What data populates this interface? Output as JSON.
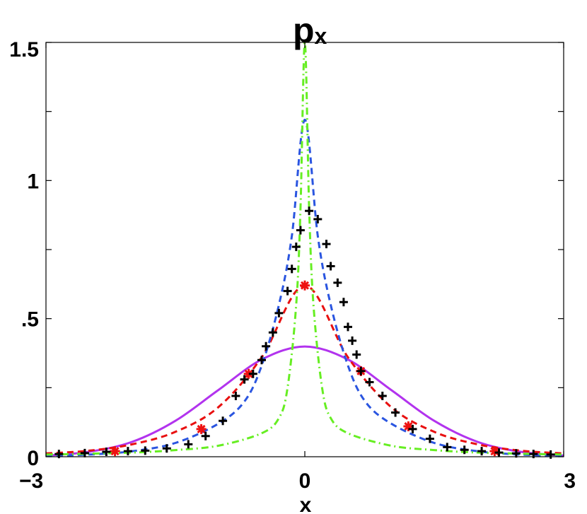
{
  "chart_data": {
    "type": "line",
    "title": "p",
    "title_subscript": "x",
    "xlabel": "x",
    "ylabel": "",
    "xlim": [
      -3,
      3
    ],
    "ylim": [
      0,
      1.5
    ],
    "x_tick_values": [
      -3,
      0,
      3
    ],
    "x_tick_labels": [
      "−3",
      "0",
      "3"
    ],
    "y_tick_values": [
      0,
      0.5,
      1,
      1.5
    ],
    "y_tick_labels": [
      "0",
      ".5",
      "1",
      "1.5"
    ],
    "grid": false,
    "legend": "none",
    "series": [
      {
        "style": "solid",
        "color": "#b233ee",
        "x": [
          -3,
          -2.5,
          -2,
          -1.5,
          -1,
          -0.5,
          0,
          0.5,
          1,
          1.5,
          2,
          2.5,
          3
        ],
        "y": [
          0.004,
          0.018,
          0.054,
          0.13,
          0.242,
          0.352,
          0.399,
          0.352,
          0.242,
          0.13,
          0.054,
          0.018,
          0.004
        ]
      },
      {
        "style": "dashed",
        "color": "#e81010",
        "x": [
          -3,
          -2.5,
          -2,
          -1.5,
          -1,
          -0.5,
          0,
          0.5,
          1,
          1.5,
          2,
          2.5,
          3
        ],
        "y": [
          0.012,
          0.022,
          0.045,
          0.09,
          0.18,
          0.36,
          0.62,
          0.36,
          0.18,
          0.09,
          0.045,
          0.022,
          0.012
        ]
      },
      {
        "style": "dashed",
        "color": "#2a55e0",
        "x": [
          -3,
          -2.5,
          -2,
          -1.5,
          -1,
          -0.7,
          -0.5,
          -0.3,
          -0.15,
          0,
          0.15,
          0.3,
          0.5,
          0.7,
          1,
          1.5,
          2,
          2.5,
          3
        ],
        "y": [
          0.003,
          0.008,
          0.02,
          0.05,
          0.12,
          0.2,
          0.33,
          0.55,
          0.8,
          1.22,
          0.8,
          0.55,
          0.33,
          0.2,
          0.12,
          0.05,
          0.02,
          0.008,
          0.003
        ]
      },
      {
        "style": "dashdot",
        "color": "#66ee22",
        "x": [
          -3,
          -2.5,
          -2,
          -1.5,
          -1,
          -0.5,
          -0.3,
          -0.2,
          -0.1,
          -0.05,
          0,
          0.05,
          0.1,
          0.2,
          0.3,
          0.5,
          1,
          1.5,
          2,
          2.5,
          3
        ],
        "y": [
          0.008,
          0.011,
          0.015,
          0.024,
          0.04,
          0.085,
          0.14,
          0.25,
          0.55,
          0.9,
          1.5,
          0.9,
          0.55,
          0.25,
          0.14,
          0.085,
          0.04,
          0.024,
          0.015,
          0.011,
          0.008
        ]
      },
      {
        "style": "star-markers",
        "color": "#ee1111",
        "x": [
          -2.2,
          -1.2,
          -0.65,
          0,
          0.65,
          1.2,
          2.2
        ],
        "y": [
          0.02,
          0.1,
          0.3,
          0.62,
          0.31,
          0.11,
          0.02
        ]
      },
      {
        "style": "plus-markers",
        "color": "#000000",
        "x": [
          -2.85,
          -2.55,
          -2.3,
          -2.05,
          -1.85,
          -1.6,
          -1.35,
          -1.15,
          -0.95,
          -0.8,
          -0.7,
          -0.6,
          -0.5,
          -0.45,
          -0.37,
          -0.3,
          -0.2,
          -0.15,
          -0.1,
          -0.05,
          0.05,
          0.15,
          0.25,
          0.3,
          0.38,
          0.45,
          0.5,
          0.55,
          0.6,
          0.65,
          0.75,
          0.9,
          1.05,
          1.25,
          1.45,
          1.65,
          1.85,
          2.05,
          2.25,
          2.45,
          2.65,
          2.85
        ],
        "y": [
          0.01,
          0.013,
          0.018,
          0.02,
          0.022,
          0.03,
          0.045,
          0.075,
          0.13,
          0.22,
          0.28,
          0.3,
          0.35,
          0.4,
          0.45,
          0.52,
          0.6,
          0.68,
          0.76,
          0.82,
          0.89,
          0.86,
          0.77,
          0.69,
          0.63,
          0.56,
          0.47,
          0.42,
          0.37,
          0.31,
          0.27,
          0.22,
          0.16,
          0.1,
          0.065,
          0.035,
          0.025,
          0.02,
          0.015,
          0.012,
          0.01,
          0.008
        ]
      }
    ]
  }
}
